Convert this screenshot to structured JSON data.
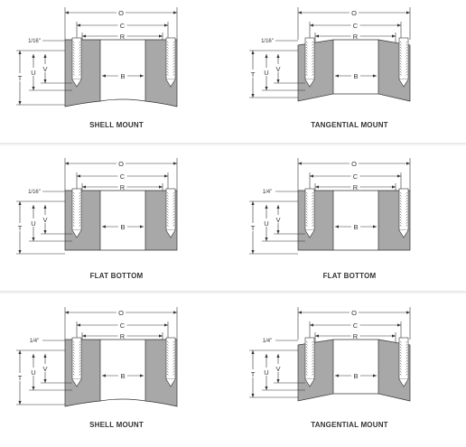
{
  "panels": [
    {
      "caption": "SHELL MOUNT",
      "type": "shell",
      "edge_label": "1/16\"",
      "dims": {
        "O": "O",
        "C": "C",
        "R": "R",
        "B": "B",
        "T": "T",
        "U": "U",
        "V": "V"
      }
    },
    {
      "caption": "TANGENTIAL MOUNT",
      "type": "tangential",
      "edge_label": "1/16\"",
      "dims": {
        "O": "O",
        "C": "C",
        "R": "R",
        "B": "B",
        "T": "T",
        "U": "U",
        "V": "V"
      }
    },
    {
      "caption": "FLAT BOTTOM",
      "type": "flat",
      "edge_label": "1/16\"",
      "dims": {
        "O": "O",
        "C": "C",
        "R": "R",
        "B": "B",
        "T": "T",
        "U": "U",
        "V": "V"
      }
    },
    {
      "caption": "FLAT BOTTOM",
      "type": "flat",
      "edge_label": "1/4\"",
      "dims": {
        "O": "O",
        "C": "C",
        "R": "R",
        "B": "B",
        "T": "T",
        "U": "U",
        "V": "V"
      }
    },
    {
      "caption": "SHELL MOUNT",
      "type": "shell",
      "edge_label": "1/4\"",
      "dims": {
        "O": "O",
        "C": "C",
        "R": "R",
        "B": "B",
        "T": "T",
        "U": "U",
        "V": "V"
      }
    },
    {
      "caption": "TANGENTIAL MOUNT",
      "type": "tangential",
      "edge_label": "1/4\"",
      "dims": {
        "O": "O",
        "C": "C",
        "R": "R",
        "B": "B",
        "T": "T",
        "U": "U",
        "V": "V"
      }
    }
  ],
  "colors": {
    "fill": "#a8a8a8",
    "line": "#333333"
  }
}
